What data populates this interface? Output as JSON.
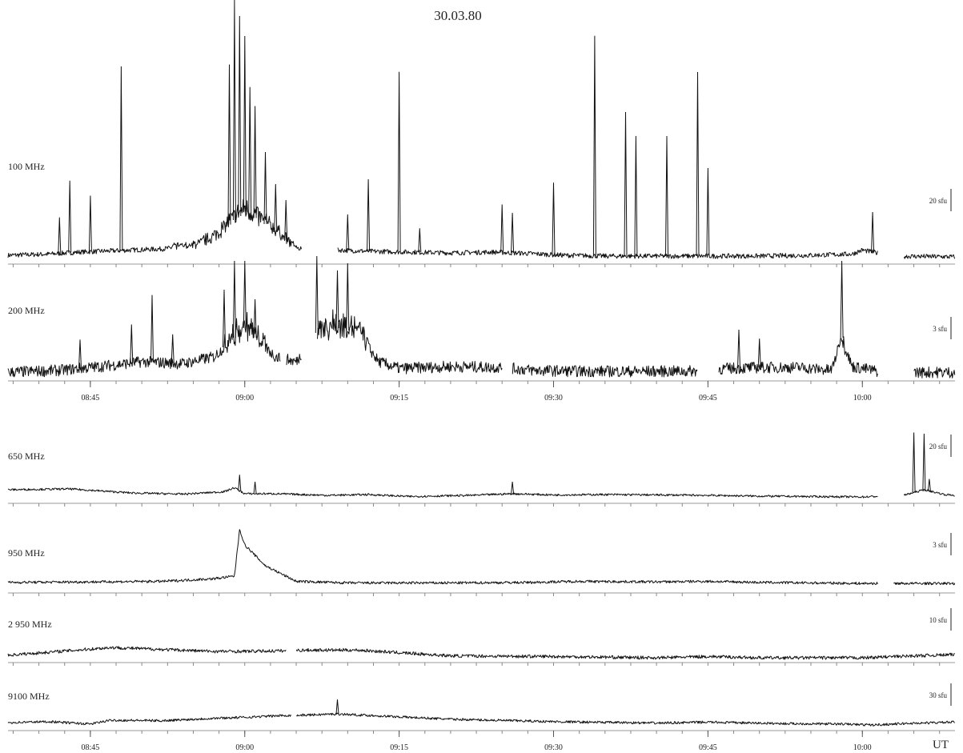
{
  "chart_data": {
    "type": "line",
    "title": "30.03.80",
    "x_unit_label": "UT",
    "x_ticks": [
      "08:45",
      "09:00",
      "09:15",
      "09:30",
      "09:45",
      "10:00"
    ],
    "x_range": [
      "08:37",
      "10:09"
    ],
    "panels": [
      {
        "name": "100 MHz",
        "scale_label": "20 sfu",
        "baseline_points": [
          [
            "08:37",
            1.2
          ],
          [
            "08:41",
            1.5
          ],
          [
            "08:44",
            2.0
          ],
          [
            "08:48",
            2.4
          ],
          [
            "08:52",
            2.8
          ],
          [
            "08:55",
            3.5
          ],
          [
            "08:57",
            5.5
          ],
          [
            "08:59",
            10
          ],
          [
            "09:00",
            12
          ],
          [
            "09:02",
            9
          ],
          [
            "09:04",
            5
          ],
          [
            "09:05",
            3.0
          ],
          [
            "09:09",
            2.5
          ],
          [
            "09:12",
            2.2
          ],
          [
            "09:16",
            2.0
          ],
          [
            "09:20",
            1.8
          ],
          [
            "09:24",
            2.0
          ],
          [
            "09:28",
            1.6
          ],
          [
            "09:31",
            1.2
          ],
          [
            "09:35",
            1.0
          ],
          [
            "09:40",
            1.0
          ],
          [
            "09:45",
            1.0
          ],
          [
            "09:50",
            1.0
          ],
          [
            "09:55",
            1.2
          ],
          [
            "09:59",
            1.5
          ],
          [
            "10:00",
            2.5
          ],
          [
            "10:03",
            1.0
          ],
          [
            "10:09",
            0.8
          ]
        ],
        "gaps": [
          [
            "09:05:30",
            "09:09:00"
          ],
          [
            "10:01:30",
            "10:04:00"
          ]
        ],
        "spikes": [
          [
            "08:42",
            9
          ],
          [
            "08:43",
            18
          ],
          [
            "08:45",
            14
          ],
          [
            "08:48",
            46
          ],
          [
            "08:58:30",
            40
          ],
          [
            "08:59",
            55
          ],
          [
            "08:59:30",
            50
          ],
          [
            "09:00",
            44
          ],
          [
            "09:00:30",
            32
          ],
          [
            "09:01",
            28
          ],
          [
            "09:02",
            18
          ],
          [
            "09:03",
            12
          ],
          [
            "09:04",
            10
          ],
          [
            "09:10",
            9
          ],
          [
            "09:12",
            18
          ],
          [
            "09:15",
            45
          ],
          [
            "09:17",
            6
          ],
          [
            "09:25",
            12
          ],
          [
            "09:26",
            10
          ],
          [
            "09:30",
            18
          ],
          [
            "09:34",
            55
          ],
          [
            "09:37",
            36
          ],
          [
            "09:38",
            30
          ],
          [
            "09:41",
            30
          ],
          [
            "09:44",
            46
          ],
          [
            "09:45",
            22
          ],
          [
            "10:01",
            10
          ]
        ]
      },
      {
        "name": "200 MHz",
        "scale_label": "3 sfu",
        "baseline_points": [
          [
            "08:37",
            0.4
          ],
          [
            "08:42",
            0.6
          ],
          [
            "08:46",
            1.0
          ],
          [
            "08:50",
            1.5
          ],
          [
            "08:54",
            1.3
          ],
          [
            "08:57",
            2.0
          ],
          [
            "08:59",
            4.0
          ],
          [
            "09:00",
            5.0
          ],
          [
            "09:02",
            3.0
          ],
          [
            "09:03",
            2.0
          ],
          [
            "09:05",
            1.5
          ],
          [
            "09:07",
            4.5
          ],
          [
            "09:09",
            5.0
          ],
          [
            "09:11",
            4.5
          ],
          [
            "09:13",
            1.5
          ],
          [
            "09:15",
            0.8
          ],
          [
            "09:20",
            1.0
          ],
          [
            "09:25",
            0.9
          ],
          [
            "09:28",
            0.6
          ],
          [
            "09:33",
            0.5
          ],
          [
            "09:38",
            0.5
          ],
          [
            "09:43",
            0.5
          ],
          [
            "09:47",
            0.8
          ],
          [
            "09:50",
            0.9
          ],
          [
            "09:54",
            0.9
          ],
          [
            "09:57",
            0.6
          ],
          [
            "09:58",
            4.0
          ],
          [
            "09:59",
            1.0
          ],
          [
            "10:02",
            0.4
          ],
          [
            "10:09",
            0.4
          ]
        ],
        "gaps": [
          [
            "09:03:30",
            "09:04:00"
          ],
          [
            "09:05:30",
            "09:07:00"
          ],
          [
            "09:25:00",
            "09:26:00"
          ],
          [
            "09:44:00",
            "09:46:00"
          ],
          [
            "10:01:30",
            "10:05:00"
          ]
        ],
        "spikes": [
          [
            "08:44",
            3
          ],
          [
            "08:49",
            4
          ],
          [
            "08:51",
            7
          ],
          [
            "08:53",
            3
          ],
          [
            "08:58",
            6
          ],
          [
            "08:59",
            8
          ],
          [
            "09:00",
            7
          ],
          [
            "09:01",
            4
          ],
          [
            "09:07",
            8
          ],
          [
            "09:09",
            6
          ],
          [
            "09:10",
            7
          ],
          [
            "09:48",
            4
          ],
          [
            "09:50",
            3
          ],
          [
            "09:58",
            8
          ]
        ]
      },
      {
        "name": "650 MHz",
        "scale_label": "20 sfu",
        "baseline_points": [
          [
            "08:37",
            2.0
          ],
          [
            "08:43",
            2.2
          ],
          [
            "08:49",
            1.2
          ],
          [
            "08:54",
            0.9
          ],
          [
            "08:58",
            1.5
          ],
          [
            "08:59",
            2.5
          ],
          [
            "09:00",
            1.0
          ],
          [
            "09:03",
            1.0
          ],
          [
            "09:08",
            0.6
          ],
          [
            "09:12",
            0.8
          ],
          [
            "09:16",
            0.3
          ],
          [
            "09:22",
            0.6
          ],
          [
            "09:26",
            1.0
          ],
          [
            "09:30",
            0.7
          ],
          [
            "09:35",
            0.8
          ],
          [
            "09:40",
            0.7
          ],
          [
            "09:45",
            0.6
          ],
          [
            "09:50",
            0.4
          ],
          [
            "09:55",
            0.3
          ],
          [
            "10:00",
            0.2
          ],
          [
            "10:02",
            0.4
          ],
          [
            "10:04",
            0.6
          ],
          [
            "10:06",
            2.0
          ],
          [
            "10:08",
            0.8
          ],
          [
            "10:09",
            0.6
          ]
        ],
        "gaps": [
          [
            "10:01:30",
            "10:04:00"
          ]
        ],
        "spikes": [
          [
            "08:59:30",
            4
          ],
          [
            "09:01",
            3
          ],
          [
            "09:26",
            3
          ],
          [
            "10:05",
            15
          ],
          [
            "10:06",
            14
          ],
          [
            "10:06:30",
            3
          ]
        ]
      },
      {
        "name": "950 MHz",
        "scale_label": "3 sfu",
        "baseline_points": [
          [
            "08:37",
            0.8
          ],
          [
            "08:45",
            0.9
          ],
          [
            "08:52",
            1.0
          ],
          [
            "08:57",
            1.5
          ],
          [
            "08:59",
            2.0
          ],
          [
            "08:59:30",
            11.0
          ],
          [
            "09:00",
            8.0
          ],
          [
            "09:01",
            6.0
          ],
          [
            "09:02",
            4.0
          ],
          [
            "09:04",
            2.0
          ],
          [
            "09:05",
            1.0
          ],
          [
            "09:10",
            0.7
          ],
          [
            "09:20",
            0.7
          ],
          [
            "09:28",
            0.8
          ],
          [
            "09:32",
            1.0
          ],
          [
            "09:40",
            0.9
          ],
          [
            "09:45",
            1.0
          ],
          [
            "09:50",
            0.8
          ],
          [
            "09:55",
            0.7
          ],
          [
            "10:00",
            0.6
          ],
          [
            "10:03",
            0.6
          ],
          [
            "10:09",
            0.6
          ]
        ],
        "gaps": [
          [
            "10:01:30",
            "10:03:00"
          ]
        ],
        "spikes": []
      },
      {
        "name": "2 950 MHz",
        "scale_label": "10 sfu",
        "baseline_points": [
          [
            "08:37",
            0.4
          ],
          [
            "08:42",
            1.0
          ],
          [
            "08:47",
            1.6
          ],
          [
            "08:52",
            1.3
          ],
          [
            "08:57",
            1.0
          ],
          [
            "09:00",
            1.0
          ],
          [
            "09:04",
            1.1
          ],
          [
            "09:06",
            1.2
          ],
          [
            "09:11",
            1.2
          ],
          [
            "09:15",
            0.8
          ],
          [
            "09:20",
            0.3
          ],
          [
            "09:30",
            0.2
          ],
          [
            "09:40",
            0.0
          ],
          [
            "09:45",
            0.2
          ],
          [
            "09:50",
            0.0
          ],
          [
            "09:55",
            0.0
          ],
          [
            "10:00",
            0.0
          ],
          [
            "10:05",
            0.3
          ],
          [
            "10:09",
            0.5
          ]
        ],
        "gaps": [
          [
            "09:04:00",
            "09:05:00"
          ]
        ],
        "spikes": []
      },
      {
        "name": "9100 MHz",
        "scale_label": "30 sfu",
        "baseline_points": [
          [
            "08:37",
            0.5
          ],
          [
            "08:41",
            0.7
          ],
          [
            "08:45",
            0.2
          ],
          [
            "08:47",
            1.0
          ],
          [
            "08:52",
            0.9
          ],
          [
            "08:57",
            1.4
          ],
          [
            "09:00",
            1.6
          ],
          [
            "09:04",
            2.0
          ],
          [
            "09:05",
            2.0
          ],
          [
            "09:09",
            2.3
          ],
          [
            "09:12",
            2.0
          ],
          [
            "09:20",
            1.2
          ],
          [
            "09:30",
            0.7
          ],
          [
            "09:40",
            0.4
          ],
          [
            "09:45",
            0.6
          ],
          [
            "09:52",
            0.3
          ],
          [
            "09:58",
            0.2
          ],
          [
            "10:01",
            0.0
          ],
          [
            "10:04",
            0.3
          ],
          [
            "10:09",
            0.6
          ]
        ],
        "gaps": [
          [
            "09:04:30",
            "09:05:00"
          ]
        ],
        "spikes": [
          [
            "09:09",
            3
          ]
        ]
      }
    ]
  }
}
